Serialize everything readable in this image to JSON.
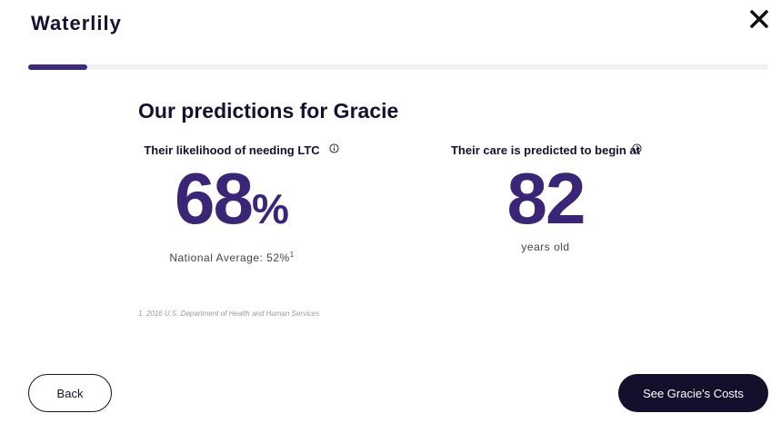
{
  "header": {
    "logo": "Waterlily",
    "close_icon": "close-icon"
  },
  "progress": {
    "fraction": 0.08,
    "color": "#3d2a7a"
  },
  "main": {
    "title": "Our predictions for Gracie",
    "likelihood": {
      "label": "Their likelihood of needing LTC",
      "value": "68",
      "unit": "%",
      "sub_text": "National Average: 52%",
      "sub_sup": "1",
      "icon": "info-icon"
    },
    "care_age": {
      "label": "Their care is predicted to begin at",
      "value": "82",
      "sub_text": "years old",
      "icon": "info-icon"
    },
    "footnote": "1. 2016 U.S. Department of Health and Human Services"
  },
  "footer": {
    "back_label": "Back",
    "next_label": "See Gracie's Costs"
  },
  "colors": {
    "accent": "#3a2577",
    "dark": "#14102c"
  }
}
